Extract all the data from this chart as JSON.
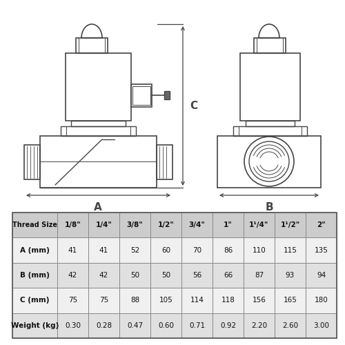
{
  "table_headers": [
    "Thread Size",
    "1/8\"",
    "1/4\"",
    "3/8\"",
    "1/2\"",
    "3/4\"",
    "1\"",
    "1¹/4\"",
    "1¹/2\"",
    "2\""
  ],
  "table_rows": [
    [
      "A (mm)",
      "41",
      "41",
      "52",
      "60",
      "70",
      "86",
      "110",
      "115",
      "135"
    ],
    [
      "B (mm)",
      "42",
      "42",
      "50",
      "50",
      "56",
      "66",
      "87",
      "93",
      "94"
    ],
    [
      "C (mm)",
      "75",
      "75",
      "88",
      "105",
      "114",
      "118",
      "156",
      "165",
      "180"
    ],
    [
      "Weight (kg)",
      "0.30",
      "0.28",
      "0.47",
      "0.60",
      "0.71",
      "0.92",
      "2.20",
      "2.60",
      "3.00"
    ]
  ],
  "bg_color": "#ffffff",
  "line_color": "#444444",
  "table_header_bg": "#cccccc",
  "table_row_bg_odd": "#f0f0f0",
  "table_row_bg_even": "#e0e0e0",
  "font_size_table": 7.5,
  "font_size_label": 11
}
